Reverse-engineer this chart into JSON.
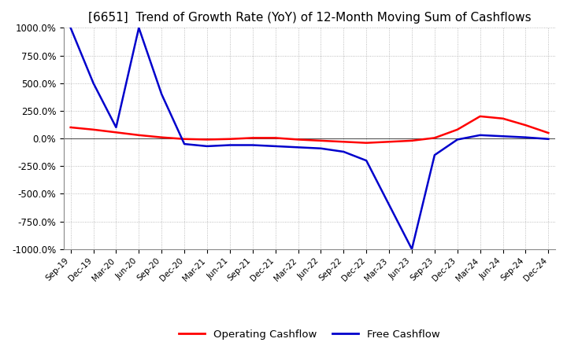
{
  "title": "[6651]  Trend of Growth Rate (YoY) of 12-Month Moving Sum of Cashflows",
  "title_fontsize": 11,
  "ylim": [
    -1000,
    1000
  ],
  "yticks": [
    -1000,
    -750,
    -500,
    -250,
    0,
    250,
    500,
    750,
    1000
  ],
  "yticklabels": [
    "-1000.0%",
    "-750.0%",
    "-500.0%",
    "-250.0%",
    "0.0%",
    "250.0%",
    "500.0%",
    "750.0%",
    "1000.0%"
  ],
  "background_color": "#ffffff",
  "grid_color": "#aaaaaa",
  "operating_color": "#ff0000",
  "free_color": "#0000cc",
  "legend_labels": [
    "Operating Cashflow",
    "Free Cashflow"
  ],
  "x_labels": [
    "Sep-19",
    "Dec-19",
    "Mar-20",
    "Jun-20",
    "Sep-20",
    "Dec-20",
    "Mar-21",
    "Jun-21",
    "Sep-21",
    "Dec-21",
    "Mar-22",
    "Jun-22",
    "Sep-22",
    "Dec-22",
    "Mar-23",
    "Jun-23",
    "Sep-23",
    "Dec-23",
    "Mar-24",
    "Jun-24",
    "Sep-24",
    "Dec-24"
  ],
  "operating_cashflow": [
    100,
    80,
    55,
    30,
    10,
    -5,
    -10,
    -5,
    5,
    5,
    -10,
    -20,
    -30,
    -40,
    -30,
    -20,
    5,
    80,
    200,
    180,
    120,
    50
  ],
  "free_cashflow": [
    1000,
    500,
    100,
    1000,
    400,
    -50,
    -70,
    -60,
    -60,
    -70,
    -80,
    -90,
    -120,
    -200,
    -600,
    -1000,
    -150,
    -10,
    30,
    20,
    10,
    -5
  ]
}
